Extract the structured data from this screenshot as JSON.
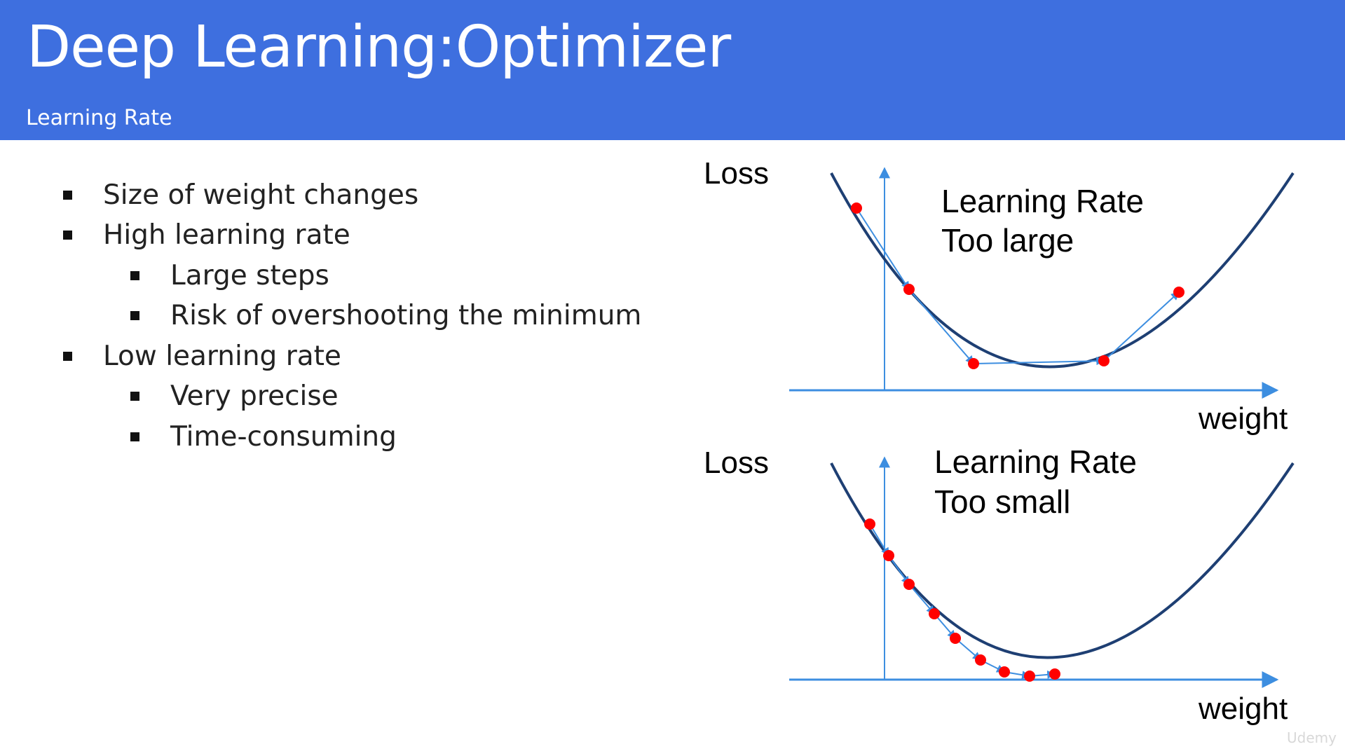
{
  "slide": {
    "title": "Deep Learning:Optimizer",
    "subtitle": "Learning Rate",
    "header_color": "#3e6fdf"
  },
  "bullets": [
    {
      "level": 1,
      "text": "Size of weight changes"
    },
    {
      "level": 1,
      "text": "High learning rate"
    },
    {
      "level": 2,
      "text": "Large steps"
    },
    {
      "level": 2,
      "text": "Risk of overshooting the minimum"
    },
    {
      "level": 1,
      "text": "Low learning rate"
    },
    {
      "level": 2,
      "text": "Very precise"
    },
    {
      "level": 2,
      "text": "Time-consuming"
    }
  ],
  "diagrams": {
    "top": {
      "y_label": "Loss",
      "x_label": "weight",
      "caption_line1": "Learning Rate",
      "caption_line2": "Too large"
    },
    "bottom": {
      "y_label": "Loss",
      "x_label": "weight",
      "caption_line1": "Learning Rate",
      "caption_line2": "Too small"
    },
    "colors": {
      "curve": "#1e3f73",
      "axis": "#3d8ee0",
      "point": "#ff0000",
      "step_arrow": "#3d8ee0"
    }
  },
  "watermark": "Udemy"
}
